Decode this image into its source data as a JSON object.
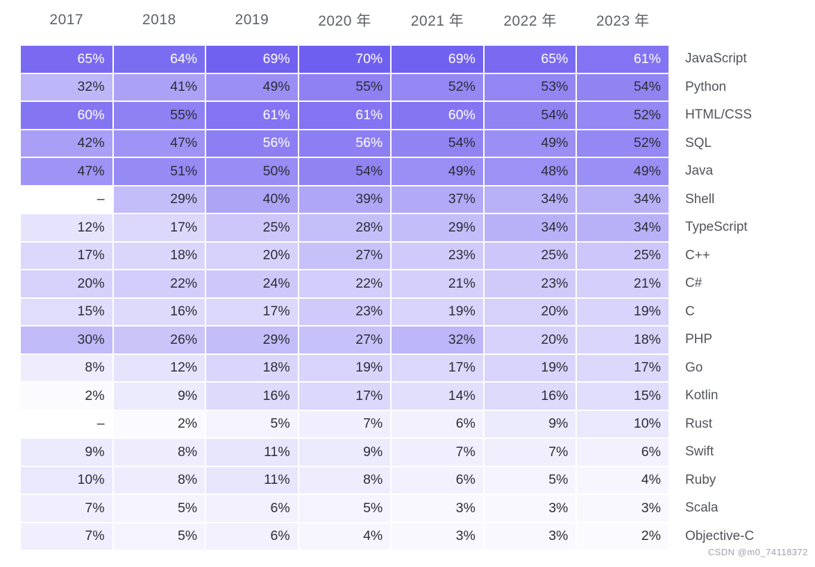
{
  "chart_data": {
    "type": "heatmap",
    "title": "",
    "unit": "%",
    "columns": [
      "2017",
      "2018",
      "2019",
      "2020 年",
      "2021 年",
      "2022 年",
      "2023 年"
    ],
    "rows": [
      {
        "label": "JavaScript",
        "values": [
          65,
          64,
          69,
          70,
          69,
          65,
          61
        ]
      },
      {
        "label": "Python",
        "values": [
          32,
          41,
          49,
          55,
          52,
          53,
          54
        ]
      },
      {
        "label": "HTML/CSS",
        "values": [
          60,
          55,
          61,
          61,
          60,
          54,
          52
        ]
      },
      {
        "label": "SQL",
        "values": [
          42,
          47,
          56,
          56,
          54,
          49,
          52
        ]
      },
      {
        "label": "Java",
        "values": [
          47,
          51,
          50,
          54,
          49,
          48,
          49
        ]
      },
      {
        "label": "Shell",
        "values": [
          null,
          29,
          40,
          39,
          37,
          34,
          34
        ]
      },
      {
        "label": "TypeScript",
        "values": [
          12,
          17,
          25,
          28,
          29,
          34,
          34
        ]
      },
      {
        "label": "C++",
        "values": [
          17,
          18,
          20,
          27,
          23,
          25,
          25
        ]
      },
      {
        "label": "C#",
        "values": [
          20,
          22,
          24,
          22,
          21,
          23,
          21
        ]
      },
      {
        "label": "C",
        "values": [
          15,
          16,
          17,
          23,
          19,
          20,
          19
        ]
      },
      {
        "label": "PHP",
        "values": [
          30,
          26,
          29,
          27,
          32,
          20,
          18
        ]
      },
      {
        "label": "Go",
        "values": [
          8,
          12,
          18,
          19,
          17,
          19,
          17
        ]
      },
      {
        "label": "Kotlin",
        "values": [
          2,
          9,
          16,
          17,
          14,
          16,
          15
        ]
      },
      {
        "label": "Rust",
        "values": [
          null,
          2,
          5,
          7,
          6,
          9,
          10
        ]
      },
      {
        "label": "Swift",
        "values": [
          9,
          8,
          11,
          9,
          7,
          7,
          6
        ]
      },
      {
        "label": "Ruby",
        "values": [
          10,
          8,
          11,
          8,
          6,
          5,
          4
        ]
      },
      {
        "label": "Scala",
        "values": [
          7,
          5,
          6,
          5,
          3,
          3,
          3
        ]
      },
      {
        "label": "Objective-C",
        "values": [
          7,
          5,
          6,
          4,
          3,
          3,
          2
        ]
      }
    ],
    "missing_marker": "–",
    "color_scale": {
      "min_color": "#FFFFFF",
      "max_color": "#6F5FF0",
      "max_value": 70
    },
    "white_text_min_value": 56,
    "legend_position": "none",
    "grid": false
  },
  "colors": {
    "background": "#FFFFFF",
    "value_text_dark": "#2C2C36",
    "value_text_light": "#FFFFFF",
    "header_text": "#5E6167",
    "label_text": "#515359",
    "watermark_text": "#9FA1AD"
  },
  "watermark": "CSDN @m0_74118372"
}
